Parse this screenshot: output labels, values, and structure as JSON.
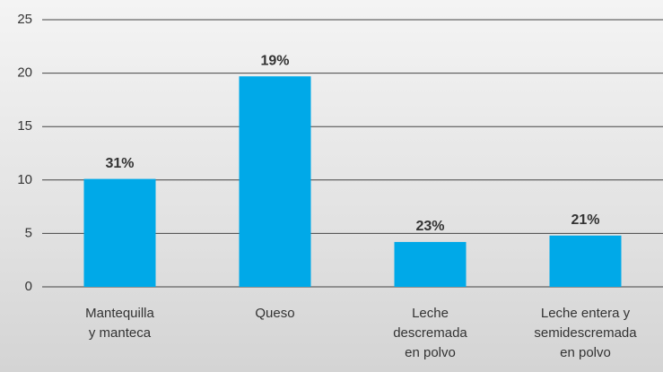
{
  "chart_data": {
    "type": "bar",
    "categories": [
      [
        "Mantequilla",
        "y manteca"
      ],
      [
        "Queso"
      ],
      [
        "Leche",
        "descremada",
        "en polvo"
      ],
      [
        "Leche entera y",
        "semidescremada",
        "en polvo"
      ]
    ],
    "values": [
      10.1,
      19.7,
      4.2,
      4.8
    ],
    "annotations": [
      "31%",
      "19%",
      "23%",
      "21%"
    ],
    "color": "#00a9e8",
    "ylim": [
      0,
      25
    ],
    "yticks": [
      0,
      5,
      10,
      15,
      20,
      25
    ],
    "grid": true
  }
}
